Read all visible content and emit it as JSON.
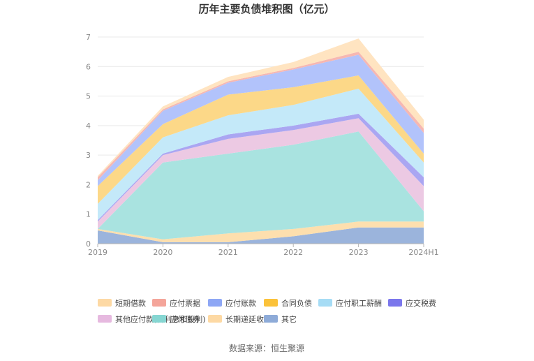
{
  "chart_data": {
    "type": "area",
    "stacked": true,
    "title": "历年主要负债堆积图（亿元）",
    "xlabel": "",
    "ylabel": "",
    "categories": [
      "2019",
      "2020",
      "2021",
      "2022",
      "2023",
      "2024H1"
    ],
    "ylim": [
      0,
      7
    ],
    "yticks": [
      0,
      1,
      2,
      3,
      4,
      5,
      6,
      7
    ],
    "grid": true,
    "legend_position": "bottom",
    "series": [
      {
        "name": "其它",
        "color": "#9bb4dc",
        "values": [
          0.45,
          0.05,
          0.05,
          0.25,
          0.55,
          0.55
        ]
      },
      {
        "name": "长期递延收益",
        "color": "#fddfae",
        "values": [
          0.05,
          0.1,
          0.3,
          0.25,
          0.2,
          0.2
        ]
      },
      {
        "name": "应付债券",
        "color": "#a9e3e0",
        "values": [
          0.0,
          2.6,
          2.7,
          2.85,
          3.05,
          0.35
        ]
      },
      {
        "name": "其他应付款(含利息和股利)",
        "color": "#ecc9e3",
        "values": [
          0.25,
          0.25,
          0.5,
          0.5,
          0.45,
          0.85
        ]
      },
      {
        "name": "应交税费",
        "color": "#aaa6f2",
        "values": [
          0.05,
          0.05,
          0.15,
          0.15,
          0.15,
          0.3
        ]
      },
      {
        "name": "应付职工薪酬",
        "color": "#c4e9f9",
        "values": [
          0.55,
          0.55,
          0.65,
          0.7,
          0.85,
          0.5
        ]
      },
      {
        "name": "合同负债",
        "color": "#fcd888",
        "values": [
          0.6,
          0.45,
          0.7,
          0.6,
          0.45,
          0.3
        ]
      },
      {
        "name": "应付账款",
        "color": "#b2c3fb",
        "values": [
          0.2,
          0.45,
          0.4,
          0.6,
          0.7,
          0.7
        ]
      },
      {
        "name": "应付票据",
        "color": "#f6b7b2",
        "values": [
          0.1,
          0.05,
          0.05,
          0.05,
          0.1,
          0.15
        ]
      },
      {
        "name": "短期借款",
        "color": "#ffe4c1",
        "values": [
          0.05,
          0.1,
          0.15,
          0.2,
          0.45,
          0.3
        ]
      }
    ],
    "legend": [
      {
        "name": "短期借款",
        "color": "#fdd9a4"
      },
      {
        "name": "应付票据",
        "color": "#f4a59a"
      },
      {
        "name": "应付账款",
        "color": "#8ea7f5"
      },
      {
        "name": "合同负债",
        "color": "#fbc23a"
      },
      {
        "name": "应付职工薪酬",
        "color": "#a6dcf5"
      },
      {
        "name": "应交税费",
        "color": "#7b77ec"
      },
      {
        "name": "其他应付款(含利息和股利)",
        "color": "#e6b9df"
      },
      {
        "name": "应付债券",
        "color": "#86d6d2"
      },
      {
        "name": "长期递延收益",
        "color": "#fdd9a4"
      },
      {
        "name": "其它",
        "color": "#8eabd8"
      }
    ]
  },
  "source": "数据来源：恒生聚源"
}
